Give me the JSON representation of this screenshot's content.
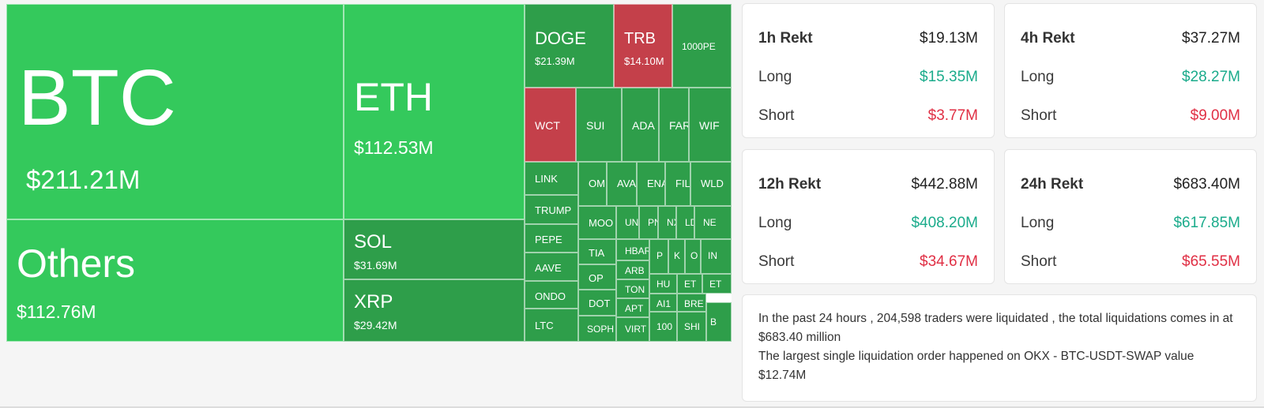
{
  "treemap": {
    "colors": {
      "up_large": "#34c95c",
      "up": "#2e9e4a",
      "down": "#c4404a"
    },
    "cells": [
      {
        "symbol": "BTC",
        "value": "$211.21M",
        "color": "#34c95c"
      },
      {
        "symbol": "Others",
        "value": "$112.76M",
        "color": "#34c95c"
      },
      {
        "symbol": "ETH",
        "value": "$112.53M",
        "color": "#34c95c"
      },
      {
        "symbol": "SOL",
        "value": "$31.69M",
        "color": "#2e9e4a"
      },
      {
        "symbol": "XRP",
        "value": "$29.42M",
        "color": "#2e9e4a"
      },
      {
        "symbol": "DOGE",
        "value": "$21.39M",
        "color": "#2e9e4a"
      },
      {
        "symbol": "TRB",
        "value": "$14.10M",
        "color": "#c4404a"
      },
      {
        "symbol": "1000PE",
        "value": "",
        "color": "#2e9e4a"
      },
      {
        "symbol": "WCT",
        "value": "",
        "color": "#c4404a"
      },
      {
        "symbol": "SUI",
        "value": "",
        "color": "#2e9e4a"
      },
      {
        "symbol": "ADA",
        "value": "",
        "color": "#2e9e4a"
      },
      {
        "symbol": "FAR",
        "value": "",
        "color": "#2e9e4a"
      },
      {
        "symbol": "WIF",
        "value": "",
        "color": "#2e9e4a"
      },
      {
        "symbol": "LINK",
        "value": "",
        "color": "#2e9e4a"
      },
      {
        "symbol": "TRUMP",
        "value": "",
        "color": "#2e9e4a"
      },
      {
        "symbol": "PEPE",
        "value": "",
        "color": "#2e9e4a"
      },
      {
        "symbol": "AAVE",
        "value": "",
        "color": "#2e9e4a"
      },
      {
        "symbol": "ONDO",
        "value": "",
        "color": "#2e9e4a"
      },
      {
        "symbol": "LTC",
        "value": "",
        "color": "#2e9e4a"
      },
      {
        "symbol": "OM",
        "value": "",
        "color": "#2e9e4a"
      },
      {
        "symbol": "AVA",
        "value": "",
        "color": "#2e9e4a"
      },
      {
        "symbol": "ENA",
        "value": "",
        "color": "#2e9e4a"
      },
      {
        "symbol": "FIL",
        "value": "",
        "color": "#2e9e4a"
      },
      {
        "symbol": "WLD",
        "value": "",
        "color": "#2e9e4a"
      },
      {
        "symbol": "MOO",
        "value": "",
        "color": "#2e9e4a"
      },
      {
        "symbol": "UN",
        "value": "",
        "color": "#2e9e4a"
      },
      {
        "symbol": "PN",
        "value": "",
        "color": "#2e9e4a"
      },
      {
        "symbol": "NX",
        "value": "",
        "color": "#2e9e4a"
      },
      {
        "symbol": "LD",
        "value": "",
        "color": "#2e9e4a"
      },
      {
        "symbol": "NE",
        "value": "",
        "color": "#2e9e4a"
      },
      {
        "symbol": "TIA",
        "value": "",
        "color": "#2e9e4a"
      },
      {
        "symbol": "HBAR",
        "value": "",
        "color": "#2e9e4a"
      },
      {
        "symbol": "P",
        "value": "",
        "color": "#2e9e4a"
      },
      {
        "symbol": "K",
        "value": "",
        "color": "#2e9e4a"
      },
      {
        "symbol": "O",
        "value": "",
        "color": "#2e9e4a"
      },
      {
        "symbol": "IN",
        "value": "",
        "color": "#2e9e4a"
      },
      {
        "symbol": "OP",
        "value": "",
        "color": "#2e9e4a"
      },
      {
        "symbol": "ARB",
        "value": "",
        "color": "#2e9e4a"
      },
      {
        "symbol": "HU",
        "value": "",
        "color": "#2e9e4a"
      },
      {
        "symbol": "ET",
        "value": "",
        "color": "#2e9e4a"
      },
      {
        "symbol": "ET",
        "value": "",
        "color": "#2e9e4a"
      },
      {
        "symbol": "DOT",
        "value": "",
        "color": "#2e9e4a"
      },
      {
        "symbol": "TON",
        "value": "",
        "color": "#2e9e4a"
      },
      {
        "symbol": "AI1",
        "value": "",
        "color": "#2e9e4a"
      },
      {
        "symbol": "BRE",
        "value": "",
        "color": "#2e9e4a"
      },
      {
        "symbol": "APT",
        "value": "",
        "color": "#2e9e4a"
      },
      {
        "symbol": "SOPH",
        "value": "",
        "color": "#2e9e4a"
      },
      {
        "symbol": "VIRT",
        "value": "",
        "color": "#2e9e4a"
      },
      {
        "symbol": "100",
        "value": "",
        "color": "#2e9e4a"
      },
      {
        "symbol": "SHI",
        "value": "",
        "color": "#2e9e4a"
      },
      {
        "symbol": "B",
        "value": "",
        "color": "#2e9e4a"
      }
    ]
  },
  "stats": [
    {
      "title": "1h Rekt",
      "total": "$19.13M",
      "long_label": "Long",
      "long": "$15.35M",
      "short_label": "Short",
      "short": "$3.77M"
    },
    {
      "title": "4h Rekt",
      "total": "$37.27M",
      "long_label": "Long",
      "long": "$28.27M",
      "short_label": "Short",
      "short": "$9.00M"
    },
    {
      "title": "12h Rekt",
      "total": "$442.88M",
      "long_label": "Long",
      "long": "$408.20M",
      "short_label": "Short",
      "short": "$34.67M"
    },
    {
      "title": "24h Rekt",
      "total": "$683.40M",
      "long_label": "Long",
      "long": "$617.85M",
      "short_label": "Short",
      "short": "$65.55M"
    }
  ],
  "summary": {
    "line1": "In the past 24 hours , 204,598 traders were liquidated , the total liquidations comes in at $683.40 million",
    "line2": "The largest single liquidation order happened on OKX - BTC-USDT-SWAP value $12.74M"
  }
}
